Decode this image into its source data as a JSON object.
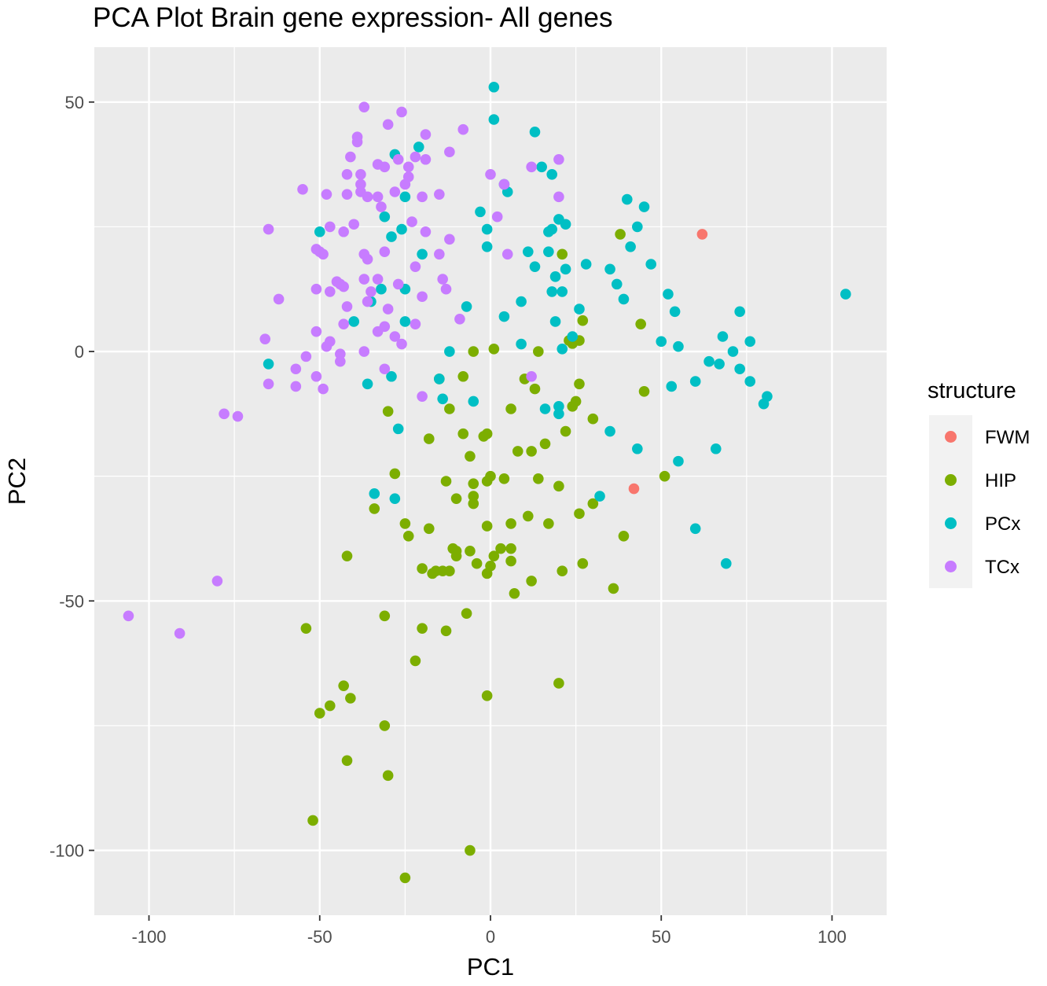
{
  "chart_data": {
    "type": "scatter",
    "title": "PCA Plot Brain gene expression- All genes",
    "xlabel": "PC1",
    "ylabel": "PC2",
    "xlim": [
      -116,
      116
    ],
    "ylim": [
      -113,
      61
    ],
    "xticks": [
      -100,
      -50,
      0,
      50,
      100
    ],
    "xtick_labels": [
      "-100",
      "-50",
      "0",
      "50",
      "100"
    ],
    "yticks": [
      -100,
      -50,
      0,
      50
    ],
    "ytick_labels": [
      "-100",
      "-50",
      "0",
      "50"
    ],
    "grid": true,
    "legend_position": "right",
    "legend_title": "structure",
    "series": [
      {
        "name": "FWM",
        "color": "#F8766D",
        "points": [
          [
            62,
            23.5
          ],
          [
            42,
            -27.5
          ]
        ]
      },
      {
        "name": "HIP",
        "color": "#7CAE00",
        "points": [
          [
            38,
            23.5
          ],
          [
            21,
            19.5
          ],
          [
            44,
            5.5
          ],
          [
            27,
            6.2
          ],
          [
            23,
            2.2
          ],
          [
            26,
            2.2
          ],
          [
            24,
            1.6
          ],
          [
            -5,
            0
          ],
          [
            1,
            0.5
          ],
          [
            14,
            0
          ],
          [
            10,
            -5.5
          ],
          [
            13,
            -7.5
          ],
          [
            26,
            -6.5
          ],
          [
            45,
            -8
          ],
          [
            -15,
            -5.5
          ],
          [
            -8,
            -5
          ],
          [
            -12,
            -11.5
          ],
          [
            -30,
            -12
          ],
          [
            6,
            -11.5
          ],
          [
            24,
            -11
          ],
          [
            25,
            -10
          ],
          [
            30,
            -13.5
          ],
          [
            22,
            -16
          ],
          [
            -18,
            -17.5
          ],
          [
            -8,
            -16.5
          ],
          [
            -1,
            -16.5
          ],
          [
            -2,
            -17
          ],
          [
            8,
            -20
          ],
          [
            12,
            -20
          ],
          [
            16,
            -18.5
          ],
          [
            -6,
            -21
          ],
          [
            -28,
            -24.5
          ],
          [
            -13,
            -26
          ],
          [
            -5,
            -26.5
          ],
          [
            -1,
            -26
          ],
          [
            0,
            -25
          ],
          [
            4,
            -25.5
          ],
          [
            14,
            -25.5
          ],
          [
            20,
            -27
          ],
          [
            51,
            -25
          ],
          [
            -34,
            -31.5
          ],
          [
            -5,
            -29
          ],
          [
            -10,
            -29.5
          ],
          [
            -5,
            -30.5
          ],
          [
            26,
            -32.5
          ],
          [
            30,
            -30.5
          ],
          [
            11,
            -33
          ],
          [
            17,
            -34.5
          ],
          [
            -25,
            -34.5
          ],
          [
            -1,
            -35
          ],
          [
            6,
            -34.5
          ],
          [
            -18,
            -35.5
          ],
          [
            -24,
            -37
          ],
          [
            39,
            -37
          ],
          [
            -11,
            -39.5
          ],
          [
            -10,
            -40
          ],
          [
            -6,
            -40
          ],
          [
            3,
            -39.5
          ],
          [
            6,
            -39.5
          ],
          [
            -10,
            -41
          ],
          [
            -42,
            -41
          ],
          [
            1,
            -41
          ],
          [
            -20,
            -43.5
          ],
          [
            -17,
            -44.5
          ],
          [
            -16,
            -44
          ],
          [
            -14,
            -44
          ],
          [
            -12,
            -44
          ],
          [
            -4,
            -42.5
          ],
          [
            -1,
            -44.5
          ],
          [
            0,
            -43
          ],
          [
            6,
            -42
          ],
          [
            21,
            -44
          ],
          [
            27,
            -42.5
          ],
          [
            12,
            -46
          ],
          [
            36,
            -47.5
          ],
          [
            7,
            -48.5
          ],
          [
            -7,
            -52.5
          ],
          [
            -31,
            -53
          ],
          [
            -54,
            -55.5
          ],
          [
            -20,
            -55.5
          ],
          [
            -13,
            -56
          ],
          [
            -22,
            -62
          ],
          [
            20,
            -66.5
          ],
          [
            -43,
            -67
          ],
          [
            -41,
            -69.5
          ],
          [
            -47,
            -71
          ],
          [
            -50,
            -72.5
          ],
          [
            -1,
            -69
          ],
          [
            -31,
            -75
          ],
          [
            -42,
            -82
          ],
          [
            -30,
            -85
          ],
          [
            -52,
            -94
          ],
          [
            -6,
            -100
          ],
          [
            -25,
            -105.5
          ]
        ]
      },
      {
        "name": "PCx",
        "color": "#00BFC4",
        "points": [
          [
            1,
            53
          ],
          [
            1,
            46.5
          ],
          [
            13,
            44
          ],
          [
            -28,
            39.5
          ],
          [
            -21,
            41
          ],
          [
            15,
            37
          ],
          [
            18,
            35.5
          ],
          [
            4,
            33.5
          ],
          [
            5,
            32
          ],
          [
            -25,
            31
          ],
          [
            40,
            30.5
          ],
          [
            45,
            29
          ],
          [
            -3,
            28
          ],
          [
            -31,
            27
          ],
          [
            20,
            26.5
          ],
          [
            22,
            25.5
          ],
          [
            18,
            24.5
          ],
          [
            17,
            24
          ],
          [
            -26,
            24.5
          ],
          [
            -50,
            24
          ],
          [
            -29,
            23
          ],
          [
            -1,
            24.5
          ],
          [
            -1,
            21
          ],
          [
            43,
            25
          ],
          [
            41,
            21
          ],
          [
            11,
            20
          ],
          [
            17,
            20
          ],
          [
            -20,
            19.5
          ],
          [
            13,
            17
          ],
          [
            22,
            16.5
          ],
          [
            28,
            17.5
          ],
          [
            35,
            16.5
          ],
          [
            47,
            17.5
          ],
          [
            19,
            15
          ],
          [
            37,
            13.5
          ],
          [
            -32,
            12.5
          ],
          [
            -25,
            12.5
          ],
          [
            18,
            12
          ],
          [
            21,
            12
          ],
          [
            39,
            10.5
          ],
          [
            52,
            11.5
          ],
          [
            -35,
            10
          ],
          [
            9,
            10
          ],
          [
            -7,
            9
          ],
          [
            26,
            8.5
          ],
          [
            54,
            8
          ],
          [
            73,
            8
          ],
          [
            104,
            11.5
          ],
          [
            4,
            7
          ],
          [
            19,
            6
          ],
          [
            -25,
            6
          ],
          [
            -40,
            6
          ],
          [
            24,
            3
          ],
          [
            68,
            3
          ],
          [
            50,
            2
          ],
          [
            55,
            1
          ],
          [
            76,
            2
          ],
          [
            9,
            1.5
          ],
          [
            21,
            0.5
          ],
          [
            -12,
            0
          ],
          [
            71,
            0
          ],
          [
            64,
            -2
          ],
          [
            67,
            -2.5
          ],
          [
            73,
            -3.5
          ],
          [
            76,
            -6
          ],
          [
            60,
            -6
          ],
          [
            -65,
            -2.5
          ],
          [
            -36,
            -6.5
          ],
          [
            -29,
            -5
          ],
          [
            -15,
            -5.5
          ],
          [
            53,
            -7
          ],
          [
            81,
            -9
          ],
          [
            80,
            -10.5
          ],
          [
            -14,
            -9.5
          ],
          [
            -5,
            -10
          ],
          [
            16,
            -11.5
          ],
          [
            20,
            -11
          ],
          [
            20,
            -12.5
          ],
          [
            -27,
            -15.5
          ],
          [
            35,
            -16
          ],
          [
            43,
            -19.5
          ],
          [
            66,
            -19.5
          ],
          [
            55,
            -22
          ],
          [
            -34,
            -28.5
          ],
          [
            -28,
            -29.5
          ],
          [
            32,
            -29
          ],
          [
            60,
            -35.5
          ],
          [
            69,
            -42.5
          ]
        ]
      },
      {
        "name": "TCx",
        "color": "#C77CFF",
        "points": [
          [
            -37,
            49
          ],
          [
            -30,
            45.5
          ],
          [
            -26,
            48
          ],
          [
            -39,
            43
          ],
          [
            -39,
            42
          ],
          [
            -19,
            43.5
          ],
          [
            -8,
            44.5
          ],
          [
            -41,
            39
          ],
          [
            -22,
            39
          ],
          [
            -12,
            40
          ],
          [
            -27,
            38.5
          ],
          [
            -19,
            38.5
          ],
          [
            -33,
            37.5
          ],
          [
            -31,
            37
          ],
          [
            -24,
            37
          ],
          [
            -24,
            35
          ],
          [
            -42,
            35.5
          ],
          [
            -38,
            35.5
          ],
          [
            0,
            35.5
          ],
          [
            12,
            37
          ],
          [
            20,
            38.5
          ],
          [
            -25,
            33.5
          ],
          [
            -38,
            33.5
          ],
          [
            4,
            33.5
          ],
          [
            -55,
            32.5
          ],
          [
            -38,
            32
          ],
          [
            -28,
            32
          ],
          [
            -42,
            31.5
          ],
          [
            -48,
            31.5
          ],
          [
            -36,
            31
          ],
          [
            -33,
            31
          ],
          [
            -20,
            31
          ],
          [
            -15,
            31.5
          ],
          [
            20,
            31
          ],
          [
            -32,
            29
          ],
          [
            2,
            27
          ],
          [
            -23,
            26
          ],
          [
            -40,
            25.5
          ],
          [
            -47,
            25
          ],
          [
            -65,
            24.5
          ],
          [
            -19,
            24
          ],
          [
            -43,
            24
          ],
          [
            -12,
            22.5
          ],
          [
            -51,
            20.5
          ],
          [
            -50,
            20
          ],
          [
            -49,
            19.5
          ],
          [
            -37,
            19.5
          ],
          [
            -31,
            20
          ],
          [
            -15,
            19.5
          ],
          [
            5,
            19.5
          ],
          [
            -36,
            18.5
          ],
          [
            -22,
            17
          ],
          [
            -45,
            14
          ],
          [
            -44,
            13.5
          ],
          [
            -37,
            14.5
          ],
          [
            -33,
            14.5
          ],
          [
            -43,
            13
          ],
          [
            -27,
            13.5
          ],
          [
            -14,
            14.5
          ],
          [
            -13,
            12.5
          ],
          [
            -51,
            12.5
          ],
          [
            -47,
            12
          ],
          [
            -35,
            12
          ],
          [
            -62,
            10.5
          ],
          [
            -20,
            11
          ],
          [
            -36,
            10
          ],
          [
            -30,
            8.5
          ],
          [
            -42,
            9
          ],
          [
            -9,
            6.5
          ],
          [
            -43,
            5.5
          ],
          [
            -31,
            5
          ],
          [
            -22,
            5.5
          ],
          [
            -33,
            4
          ],
          [
            -51,
            4
          ],
          [
            -28,
            3
          ],
          [
            -26,
            1.5
          ],
          [
            -66,
            2.5
          ],
          [
            -47,
            2
          ],
          [
            -48,
            1
          ],
          [
            -37,
            0
          ],
          [
            -44,
            -0.5
          ],
          [
            -44,
            -2
          ],
          [
            -54,
            -1
          ],
          [
            -57,
            -3.5
          ],
          [
            -31,
            -3.5
          ],
          [
            -51,
            -5
          ],
          [
            -65,
            -6.5
          ],
          [
            -57,
            -7
          ],
          [
            -49,
            -7.5
          ],
          [
            12,
            -5
          ],
          [
            -20,
            -9
          ],
          [
            -78,
            -12.5
          ],
          [
            -74,
            -13
          ],
          [
            -80,
            -46
          ],
          [
            -106,
            -53
          ],
          [
            -91,
            -56.5
          ]
        ]
      }
    ]
  }
}
